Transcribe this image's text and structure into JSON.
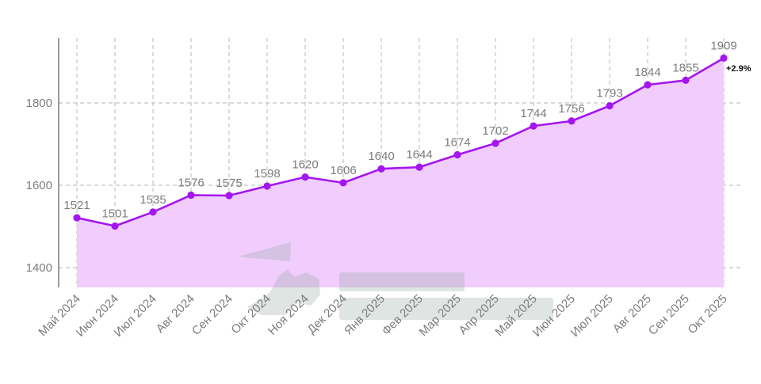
{
  "chart_data": {
    "type": "area",
    "title": "",
    "xlabel": "",
    "ylabel": "",
    "categories": [
      "Май 2024",
      "Июн 2024",
      "Июл 2024",
      "Авг 2024",
      "Сен 2024",
      "Окт 2024",
      "Ноя 2024",
      "Дек 2024",
      "Янв 2025",
      "Фев 2025",
      "Мар 2025",
      "Апр 2025",
      "Май 2025",
      "Июн 2025",
      "Июл 2025",
      "Авг 2025",
      "Сен 2025",
      "Окт 2025"
    ],
    "series": [
      {
        "values": [
          1521,
          1501,
          1535,
          1576,
          1575,
          1598,
          1620,
          1606,
          1640,
          1644,
          1674,
          1702,
          1744,
          1756,
          1793,
          1844,
          1855,
          1909
        ]
      }
    ],
    "yticks": [
      1400,
      1600,
      1800
    ],
    "ylim": [
      1350,
      1950
    ],
    "grid": true,
    "line_color": "#a416f0",
    "fill_color": "#f1cdfd",
    "annotation": "+2.9%"
  }
}
